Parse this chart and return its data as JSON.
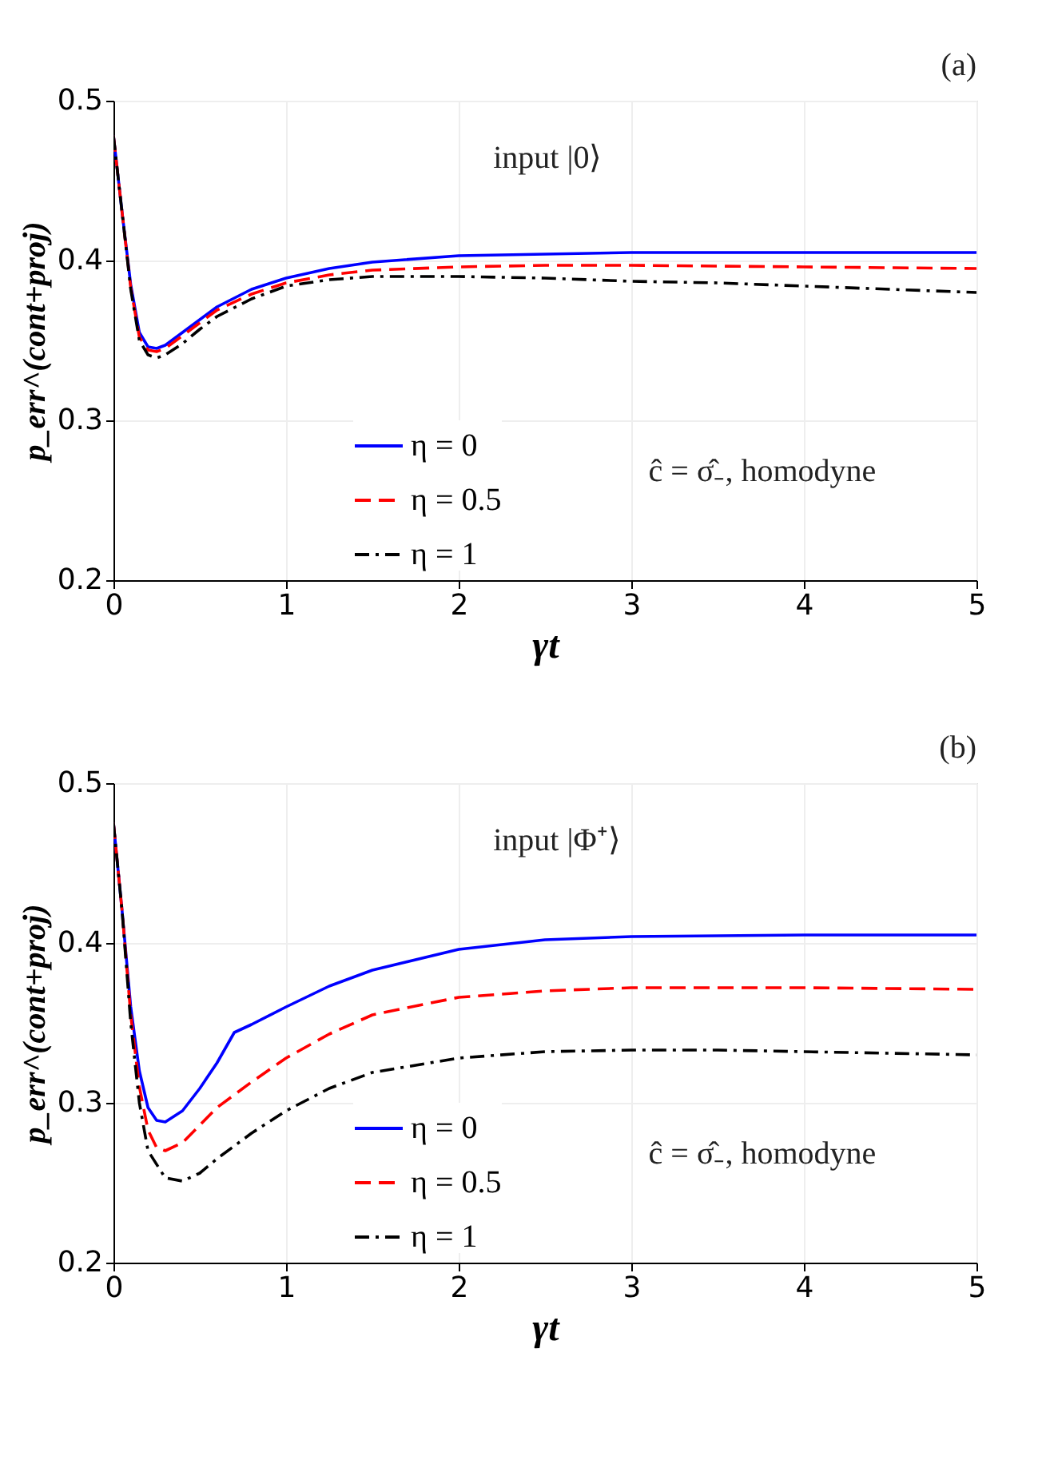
{
  "chart_data": [
    {
      "type": "line",
      "xlabel": "γt",
      "ylabel": "p_err^(cont+proj)",
      "annotations": [
        "(a)",
        "input |0⟩",
        "ĉ = σ̂₋, homodyne"
      ],
      "xlim": [
        0,
        5
      ],
      "ylim": [
        0.2,
        0.5
      ],
      "xticks": [
        0,
        1,
        2,
        3,
        4,
        5
      ],
      "yticks": [
        0.2,
        0.3,
        0.4,
        0.5
      ],
      "grid": true,
      "legend": "bottom",
      "series": [
        {
          "name": "η = 0",
          "color": "#0000ff",
          "line_style": "solid",
          "x": [
            0,
            0.05,
            0.1,
            0.15,
            0.2,
            0.25,
            0.3,
            0.4,
            0.5,
            0.6,
            0.8,
            1.0,
            1.25,
            1.5,
            2,
            2.5,
            3,
            4,
            5
          ],
          "values": [
            0.478,
            0.43,
            0.385,
            0.355,
            0.346,
            0.345,
            0.347,
            0.355,
            0.363,
            0.371,
            0.382,
            0.389,
            0.395,
            0.399,
            0.403,
            0.404,
            0.405,
            0.405,
            0.405
          ]
        },
        {
          "name": "η = 0.5",
          "color": "#ff0000",
          "line_style": "dashed",
          "x": [
            0,
            0.05,
            0.1,
            0.15,
            0.2,
            0.25,
            0.3,
            0.4,
            0.5,
            0.6,
            0.8,
            1.0,
            1.25,
            1.5,
            2,
            2.5,
            3,
            4,
            5
          ],
          "values": [
            0.478,
            0.43,
            0.383,
            0.352,
            0.344,
            0.343,
            0.345,
            0.353,
            0.361,
            0.369,
            0.379,
            0.386,
            0.391,
            0.394,
            0.396,
            0.397,
            0.397,
            0.396,
            0.395
          ]
        },
        {
          "name": "η = 1",
          "color": "#000000",
          "line_style": "dashdot",
          "x": [
            0,
            0.05,
            0.1,
            0.15,
            0.2,
            0.25,
            0.3,
            0.4,
            0.5,
            0.6,
            0.8,
            1.0,
            1.25,
            1.5,
            2,
            2.5,
            3,
            3.5,
            4,
            4.5,
            5
          ],
          "values": [
            0.478,
            0.43,
            0.382,
            0.35,
            0.341,
            0.339,
            0.341,
            0.348,
            0.357,
            0.365,
            0.376,
            0.384,
            0.388,
            0.39,
            0.39,
            0.389,
            0.387,
            0.386,
            0.384,
            0.382,
            0.38
          ]
        }
      ]
    },
    {
      "type": "line",
      "xlabel": "γt",
      "ylabel": "p_err^(cont+proj)",
      "annotations": [
        "(b)",
        "input |Φ⁺⟩",
        "ĉ = σ̂₋, homodyne"
      ],
      "xlim": [
        0,
        5
      ],
      "ylim": [
        0.2,
        0.5
      ],
      "xticks": [
        0,
        1,
        2,
        3,
        4,
        5
      ],
      "yticks": [
        0.2,
        0.3,
        0.4,
        0.5
      ],
      "grid": true,
      "legend": "bottom",
      "series": [
        {
          "name": "η = 0",
          "color": "#0000ff",
          "line_style": "solid",
          "x": [
            0,
            0.05,
            0.1,
            0.15,
            0.2,
            0.25,
            0.3,
            0.4,
            0.5,
            0.6,
            0.7,
            0.8,
            1.0,
            1.25,
            1.5,
            2,
            2.5,
            3,
            4,
            5
          ],
          "values": [
            0.475,
            0.42,
            0.36,
            0.32,
            0.297,
            0.289,
            0.288,
            0.295,
            0.309,
            0.325,
            0.344,
            0.349,
            0.36,
            0.373,
            0.383,
            0.396,
            0.402,
            0.404,
            0.405,
            0.405
          ]
        },
        {
          "name": "η = 0.5",
          "color": "#ff0000",
          "line_style": "dashed",
          "x": [
            0,
            0.05,
            0.1,
            0.15,
            0.2,
            0.25,
            0.3,
            0.4,
            0.5,
            0.6,
            0.8,
            1.0,
            1.25,
            1.5,
            2,
            2.5,
            3,
            4,
            5
          ],
          "values": [
            0.475,
            0.42,
            0.355,
            0.31,
            0.283,
            0.272,
            0.27,
            0.275,
            0.286,
            0.297,
            0.313,
            0.328,
            0.343,
            0.355,
            0.366,
            0.37,
            0.372,
            0.372,
            0.371
          ]
        },
        {
          "name": "η = 1",
          "color": "#000000",
          "line_style": "dashdot",
          "x": [
            0,
            0.05,
            0.1,
            0.15,
            0.2,
            0.3,
            0.4,
            0.5,
            0.6,
            0.8,
            1.0,
            1.25,
            1.5,
            2,
            2.5,
            3,
            3.5,
            4,
            5
          ],
          "values": [
            0.475,
            0.42,
            0.35,
            0.3,
            0.27,
            0.253,
            0.251,
            0.256,
            0.265,
            0.281,
            0.295,
            0.309,
            0.319,
            0.328,
            0.332,
            0.333,
            0.333,
            0.332,
            0.33
          ]
        }
      ]
    }
  ]
}
